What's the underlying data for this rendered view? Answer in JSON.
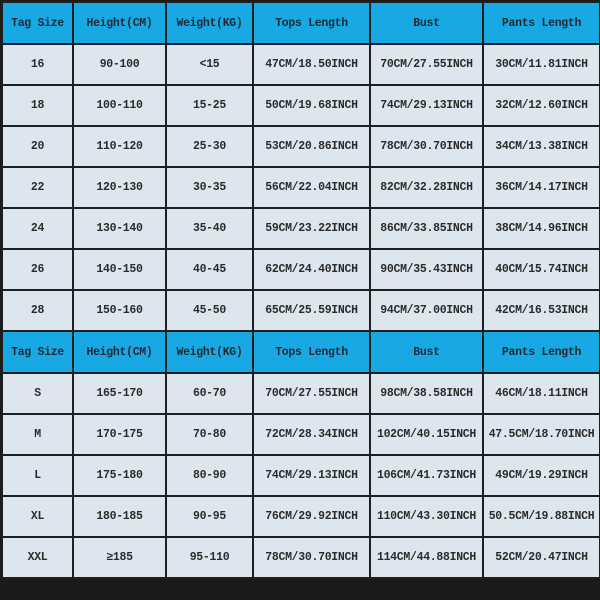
{
  "tables": [
    {
      "headers": [
        "Tag Size",
        "Height(CM)",
        "Weight(KG)",
        "Tops Length",
        "Bust",
        "Pants Length"
      ],
      "rows": [
        [
          "16",
          "90-100",
          "<15",
          "47CM/18.50INCH",
          "70CM/27.55INCH",
          "30CM/11.81INCH"
        ],
        [
          "18",
          "100-110",
          "15-25",
          "50CM/19.68INCH",
          "74CM/29.13INCH",
          "32CM/12.60INCH"
        ],
        [
          "20",
          "110-120",
          "25-30",
          "53CM/20.86INCH",
          "78CM/30.70INCH",
          "34CM/13.38INCH"
        ],
        [
          "22",
          "120-130",
          "30-35",
          "56CM/22.04INCH",
          "82CM/32.28INCH",
          "36CM/14.17INCH"
        ],
        [
          "24",
          "130-140",
          "35-40",
          "59CM/23.22INCH",
          "86CM/33.85INCH",
          "38CM/14.96INCH"
        ],
        [
          "26",
          "140-150",
          "40-45",
          "62CM/24.40INCH",
          "90CM/35.43INCH",
          "40CM/15.74INCH"
        ],
        [
          "28",
          "150-160",
          "45-50",
          "65CM/25.59INCH",
          "94CM/37.00INCH",
          "42CM/16.53INCH"
        ]
      ]
    },
    {
      "headers": [
        "Tag Size",
        "Height(CM)",
        "Weight(KG)",
        "Tops Length",
        "Bust",
        "Pants Length"
      ],
      "rows": [
        [
          "S",
          "165-170",
          "60-70",
          "70CM/27.55INCH",
          "98CM/38.58INCH",
          "46CM/18.11INCH"
        ],
        [
          "M",
          "170-175",
          "70-80",
          "72CM/28.34INCH",
          "102CM/40.15INCH",
          "47.5CM/18.70INCH"
        ],
        [
          "L",
          "175-180",
          "80-90",
          "74CM/29.13INCH",
          "106CM/41.73INCH",
          "49CM/19.29INCH"
        ],
        [
          "XL",
          "180-185",
          "90-95",
          "76CM/29.92INCH",
          "110CM/43.30INCH",
          "50.5CM/19.88INCH"
        ],
        [
          "XXL",
          "≥185",
          "95-110",
          "78CM/30.70INCH",
          "114CM/44.88INCH",
          "52CM/20.47INCH"
        ]
      ]
    }
  ],
  "colors": {
    "header_bg": "#18a9e4",
    "cell_bg": "#dde6ef",
    "border": "#1f1f1f"
  }
}
